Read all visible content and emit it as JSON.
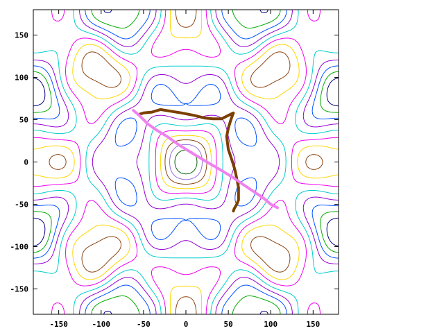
{
  "chart_data": {
    "type": "contour",
    "title": "",
    "xlabel": "",
    "ylabel": "",
    "xlim": [
      -180,
      180
    ],
    "ylim": [
      -180,
      180
    ],
    "x_ticks": [
      -150,
      -100,
      -50,
      0,
      50,
      100,
      150
    ],
    "y_ticks": [
      -150,
      -100,
      -50,
      0,
      50,
      100,
      150
    ],
    "grid": false,
    "legend": "none",
    "contour_colors": [
      "#000080",
      "#00aa00",
      "#0050ff",
      "#9400d3",
      "#00cccc",
      "#ee00ee",
      "#ffd700",
      "#8b4513",
      "#9370db",
      "#006400"
    ],
    "paths": [
      {
        "color": "#7b3f00",
        "points": [
          [
            -56,
            56
          ],
          [
            -50,
            58
          ],
          [
            -40,
            59
          ],
          [
            -30,
            62
          ],
          [
            -18,
            60
          ],
          [
            -5,
            58
          ],
          [
            10,
            55
          ],
          [
            22,
            52
          ],
          [
            32,
            51
          ],
          [
            42,
            51
          ],
          [
            48,
            54
          ],
          [
            56,
            58
          ],
          [
            53,
            50
          ],
          [
            50,
            40
          ],
          [
            48,
            30
          ],
          [
            50,
            15
          ],
          [
            55,
            0
          ],
          [
            58,
            -10
          ],
          [
            60,
            -20
          ],
          [
            62,
            -30
          ],
          [
            62,
            -45
          ],
          [
            60,
            -50
          ],
          [
            57,
            -55
          ],
          [
            56,
            -58
          ]
        ]
      },
      {
        "color": "#ee82ee",
        "points": [
          [
            -62,
            61
          ],
          [
            -55,
            55
          ],
          [
            -45,
            45
          ],
          [
            -35,
            38
          ],
          [
            -22,
            30
          ],
          [
            -8,
            20
          ],
          [
            5,
            12
          ],
          [
            18,
            4
          ],
          [
            30,
            -3
          ],
          [
            42,
            -10
          ],
          [
            55,
            -18
          ],
          [
            68,
            -27
          ],
          [
            80,
            -35
          ],
          [
            92,
            -43
          ],
          [
            100,
            -50
          ],
          [
            108,
            -54
          ]
        ]
      }
    ]
  }
}
